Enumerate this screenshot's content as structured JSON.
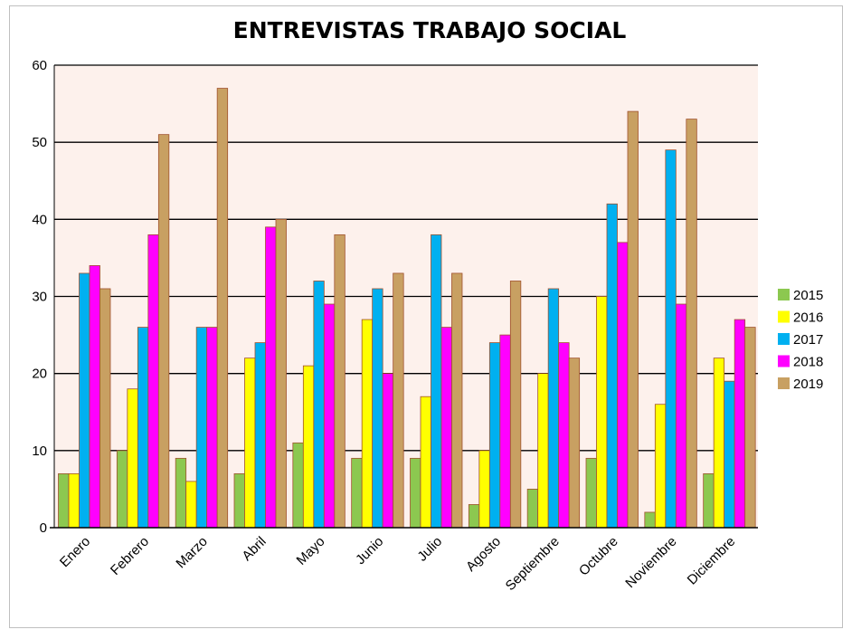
{
  "chart_data": {
    "type": "bar",
    "title": "ENTREVISTAS TRABAJO SOCIAL",
    "xlabel": "",
    "ylabel": "",
    "ylim": [
      0,
      60
    ],
    "yticks": [
      0,
      10,
      20,
      30,
      40,
      50,
      60
    ],
    "grid": true,
    "legend_position": "right",
    "background_color": "#fdf1ec",
    "categories": [
      "Enero",
      "Febrero",
      "Marzo",
      "Abril",
      "Mayo",
      "Junio",
      "Julio",
      "Agosto",
      "Septiembre",
      "Octubre",
      "Noviembre",
      "Diciembre"
    ],
    "series": [
      {
        "name": "2015",
        "color": "#8cc850",
        "values": [
          7,
          10,
          9,
          7,
          11,
          9,
          9,
          3,
          5,
          9,
          2,
          7
        ]
      },
      {
        "name": "2016",
        "color": "#ffff00",
        "values": [
          7,
          18,
          6,
          22,
          21,
          27,
          17,
          10,
          20,
          30,
          16,
          22
        ]
      },
      {
        "name": "2017",
        "color": "#00b0f0",
        "values": [
          33,
          26,
          26,
          24,
          32,
          31,
          38,
          24,
          31,
          42,
          49,
          19
        ]
      },
      {
        "name": "2018",
        "color": "#ff00ff",
        "values": [
          34,
          38,
          26,
          39,
          29,
          20,
          26,
          25,
          24,
          37,
          29,
          27
        ]
      },
      {
        "name": "2019",
        "color": "#c8a062",
        "values": [
          31,
          51,
          57,
          40,
          38,
          33,
          33,
          32,
          22,
          54,
          53,
          26
        ]
      }
    ]
  }
}
